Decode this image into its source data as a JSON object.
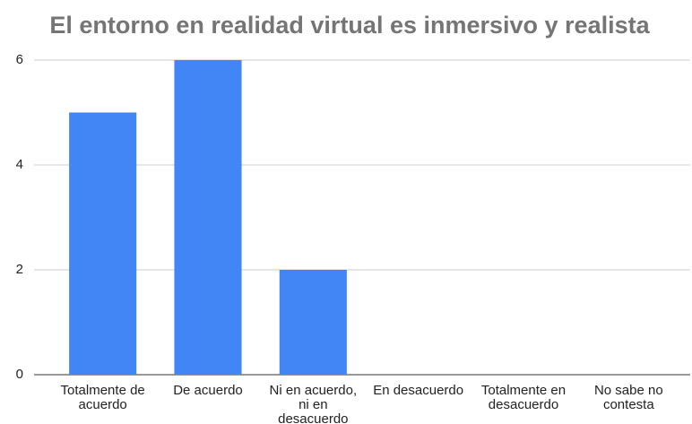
{
  "chart_data": {
    "type": "bar",
    "title": "El entorno en realidad virtual es inmersivo y realista",
    "categories": [
      "Totalmente de acuerdo",
      "De acuerdo",
      "Ni en acuerdo, ni en desacuerdo",
      "En desacuerdo",
      "Totalmente en desacuerdo",
      "No sabe no contesta"
    ],
    "values": [
      5,
      6,
      2,
      0,
      0,
      0
    ],
    "color": "#4285f4",
    "ylim": [
      0,
      6
    ],
    "yticks": [
      0,
      2,
      4,
      6
    ],
    "grid": true
  }
}
